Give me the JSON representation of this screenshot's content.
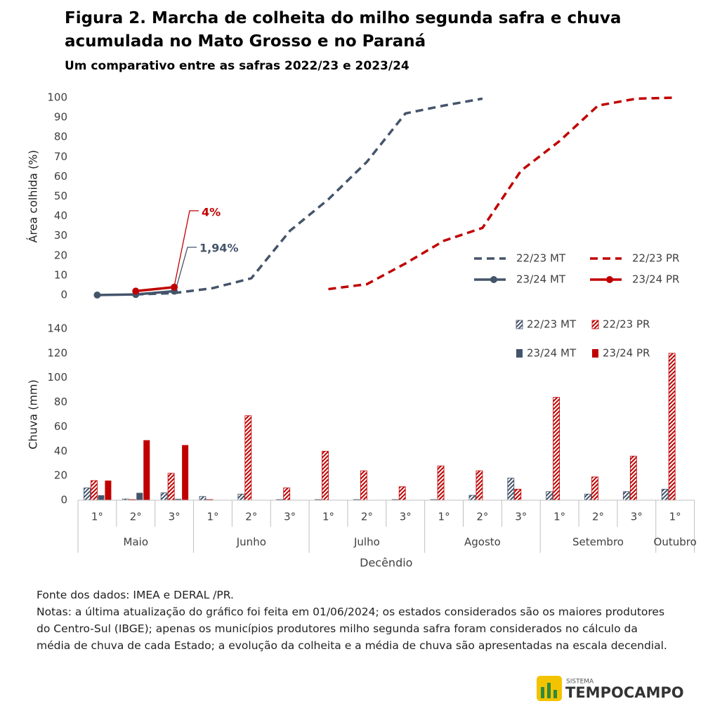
{
  "title": "Figura 2. Marcha de colheita do milho segunda safra e chuva acumulada no Mato Grosso e no Paraná",
  "subtitle": "Um comparativo entre as safras 2022/23 e 2023/24",
  "chart_data": [
    {
      "type": "line",
      "ylabel": "Área colhida (%)",
      "ylim": [
        0,
        100
      ],
      "yticks": [
        0,
        10,
        20,
        30,
        40,
        50,
        60,
        70,
        80,
        90,
        100
      ],
      "series": [
        {
          "name": "22/23 MT",
          "color": "#44546a",
          "style": "dashed",
          "marker": false,
          "values": [
            null,
            0.3,
            1,
            3.5,
            8.5,
            32.5,
            48.5,
            67.5,
            92,
            96,
            99.5,
            null,
            null,
            null,
            null,
            null
          ]
        },
        {
          "name": "22/23 PR",
          "color": "#c00000",
          "style": "dashed",
          "marker": false,
          "values": [
            null,
            null,
            null,
            null,
            null,
            null,
            3,
            5.5,
            16,
            27.5,
            34,
            63,
            78,
            96,
            99.5,
            100
          ]
        },
        {
          "name": "23/24 MT",
          "color": "#44546a",
          "style": "solid",
          "marker": true,
          "values": [
            0,
            0.3,
            1.94,
            null,
            null,
            null,
            null,
            null,
            null,
            null,
            null,
            null,
            null,
            null,
            null,
            null
          ]
        },
        {
          "name": "23/24 PR",
          "color": "#c00000",
          "style": "solid",
          "marker": true,
          "values": [
            null,
            2,
            4,
            null,
            null,
            null,
            null,
            null,
            null,
            null,
            null,
            null,
            null,
            null,
            null,
            null
          ]
        }
      ],
      "annotations": [
        {
          "text": "4%",
          "color": "#c00000"
        },
        {
          "text": "1,94%",
          "color": "#44546a"
        }
      ]
    },
    {
      "type": "bar",
      "ylabel": "Chuva (mm)",
      "xlabel": "Decêndio",
      "ylim": [
        0,
        140
      ],
      "yticks": [
        0,
        20,
        40,
        60,
        80,
        100,
        120,
        140
      ],
      "category_groups": [
        {
          "label": "Maio",
          "categories": [
            "1°",
            "2°",
            "3°"
          ]
        },
        {
          "label": "Junho",
          "categories": [
            "1°",
            "2°",
            "3°"
          ]
        },
        {
          "label": "Julho",
          "categories": [
            "1°",
            "2°",
            "3°"
          ]
        },
        {
          "label": "Agosto",
          "categories": [
            "1°",
            "2°",
            "3°"
          ]
        },
        {
          "label": "Setembro",
          "categories": [
            "1°",
            "2°",
            "3°"
          ]
        },
        {
          "label": "Outubro",
          "categories": [
            "1°"
          ]
        }
      ],
      "series": [
        {
          "name": "22/23 MT",
          "color": "#44546a",
          "pattern": "hatched",
          "values": [
            10,
            1,
            6,
            3,
            5,
            0.5,
            0.5,
            0.5,
            0.5,
            0.5,
            4,
            18,
            7,
            5,
            7,
            9
          ]
        },
        {
          "name": "22/23 PR",
          "color": "#c00000",
          "pattern": "hatched",
          "values": [
            16,
            0.5,
            22,
            0.5,
            69,
            10,
            40,
            24,
            11,
            28,
            24,
            9,
            84,
            19,
            36,
            120
          ]
        },
        {
          "name": "23/24 MT",
          "color": "#44546a",
          "pattern": "solid",
          "values": [
            4,
            6,
            1,
            null,
            null,
            null,
            null,
            null,
            null,
            null,
            null,
            null,
            null,
            null,
            null,
            null
          ]
        },
        {
          "name": "23/24 PR",
          "color": "#c00000",
          "pattern": "solid",
          "values": [
            16,
            49,
            45,
            null,
            null,
            null,
            null,
            null,
            null,
            null,
            null,
            null,
            null,
            null,
            null,
            null
          ]
        }
      ]
    }
  ],
  "source": "Fonte dos dados: IMEA e DERAL /PR.",
  "notes": "Notas: a última atualização do gráfico foi feita em 01/06/2024; os estados considerados são os maiores produtores do Centro-Sul (IBGE); apenas os municípios produtores milho segunda safra foram considerados no cálculo da média de chuva de cada Estado; a evolução da colheita e a média de chuva são apresentadas na escala decendial.",
  "logo": {
    "small": "SISTEMA",
    "name": "TEMPOCAMPO"
  }
}
